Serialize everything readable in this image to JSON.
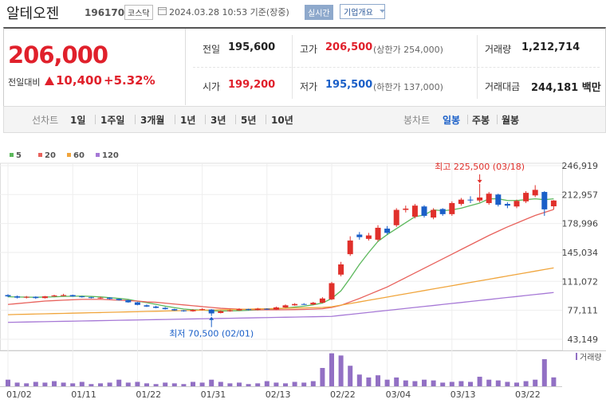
{
  "header": {
    "title": "알테오젠",
    "code": "196170",
    "market": "코스닥",
    "timestamp": "2024.03.28 10:53 기준(장중)",
    "badge": "실시간",
    "button": "기업개요"
  },
  "quote": {
    "price": "206,000",
    "change_label": "전일대비",
    "change": "10,400",
    "change_pct": "+5.32%",
    "rows": [
      [
        {
          "label": "전일",
          "value": "195,600"
        },
        {
          "label": "고가",
          "value": "206,500",
          "note": "(상한가 254,000)"
        },
        {
          "label": "거래량",
          "value": "1,212,714"
        }
      ],
      [
        {
          "label": "시가",
          "value": "199,200"
        },
        {
          "label": "저가",
          "value": "195,500",
          "note": "(하한가 137,000)"
        },
        {
          "label": "거래대금",
          "value": "244,181 백만"
        }
      ]
    ]
  },
  "tabs": {
    "line_label": "선차트",
    "line_items": [
      "1일",
      "1주일",
      "3개월",
      "1년",
      "3년",
      "5년",
      "10년"
    ],
    "candle_label": "봉차트",
    "candle_items": [
      "일봉",
      "주봉",
      "월봉"
    ],
    "selected_candle": 0
  },
  "chart_data": {
    "type": "candlestick",
    "categories": [
      "01/02",
      null,
      null,
      null,
      null,
      null,
      null,
      "01/11",
      null,
      null,
      null,
      null,
      null,
      null,
      "01/22",
      null,
      null,
      null,
      null,
      null,
      null,
      "01/31",
      null,
      null,
      null,
      null,
      null,
      null,
      "02/13",
      null,
      null,
      null,
      null,
      null,
      null,
      "02/22",
      null,
      null,
      null,
      null,
      null,
      "03/04",
      null,
      null,
      null,
      null,
      null,
      null,
      "03/13",
      null,
      null,
      null,
      null,
      null,
      null,
      "03/22",
      null,
      null,
      null,
      null
    ],
    "open": [
      95000,
      93500,
      92000,
      93000,
      91500,
      93500,
      94000,
      95000,
      93500,
      92500,
      91500,
      92000,
      90500,
      89000,
      86500,
      83000,
      81500,
      80000,
      78500,
      77000,
      76000,
      77500,
      78000,
      74000,
      76000,
      77000,
      78500,
      77500,
      79000,
      78000,
      80500,
      83000,
      84500,
      84000,
      86000,
      90000,
      119000,
      143000,
      166000,
      161000,
      160000,
      173000,
      177000,
      195000,
      187000,
      199000,
      186000,
      196000,
      190000,
      202000,
      207000,
      206000,
      203000,
      213000,
      202000,
      199000,
      205000,
      212000,
      216000,
      199200
    ],
    "high": [
      96000,
      94500,
      94000,
      93500,
      94000,
      95500,
      96500,
      95500,
      94000,
      93000,
      93000,
      92500,
      91000,
      89500,
      87000,
      84000,
      82500,
      81000,
      79000,
      77500,
      78500,
      79500,
      78500,
      77000,
      78000,
      79500,
      79000,
      80000,
      79500,
      81500,
      84000,
      85500,
      85500,
      87000,
      92500,
      110500,
      134000,
      164000,
      169000,
      168000,
      177000,
      176000,
      197000,
      200000,
      202000,
      200500,
      197000,
      197000,
      205000,
      209000,
      211000,
      225500,
      216000,
      214000,
      204000,
      207000,
      217000,
      224000,
      217000,
      206500
    ],
    "low": [
      92500,
      91000,
      91000,
      90500,
      91000,
      93000,
      93500,
      93000,
      92000,
      91000,
      90500,
      90000,
      88500,
      86000,
      83000,
      81000,
      79500,
      78000,
      76500,
      75500,
      75500,
      77000,
      70500,
      73500,
      75500,
      76500,
      77000,
      77000,
      77500,
      77500,
      80000,
      82500,
      83500,
      83500,
      85500,
      89000,
      117000,
      141000,
      160000,
      159000,
      158000,
      166000,
      175000,
      192000,
      185000,
      186000,
      184000,
      188000,
      188000,
      200000,
      203000,
      204000,
      201000,
      199000,
      197000,
      197000,
      203000,
      210000,
      188000,
      195500
    ],
    "close": [
      93500,
      92000,
      93000,
      91500,
      93500,
      94500,
      95000,
      93500,
      92500,
      91500,
      92000,
      90500,
      89000,
      86500,
      83500,
      81500,
      80000,
      78500,
      77000,
      76000,
      77500,
      78500,
      73500,
      76000,
      77000,
      78500,
      77500,
      79000,
      78000,
      80500,
      83000,
      84500,
      84000,
      86000,
      91000,
      109000,
      131000,
      159000,
      163000,
      165000,
      174000,
      168000,
      195000,
      196500,
      200000,
      188000,
      195000,
      190000,
      203000,
      207000,
      206500,
      209500,
      214000,
      201000,
      200000,
      205500,
      215000,
      218500,
      195600,
      206000
    ],
    "up_color": "#e0302b",
    "down_color": "#1a5fc8",
    "moving_averages": [
      {
        "name": "5",
        "color": "#5cb85c",
        "values": [
          93000,
          92800,
          92600,
          92400,
          92700,
          92900,
          93500,
          93600,
          93800,
          93400,
          92900,
          91900,
          91100,
          89900,
          87900,
          86100,
          84100,
          82000,
          80300,
          78600,
          77800,
          77500,
          76500,
          76300,
          76400,
          76700,
          77100,
          77600,
          77800,
          78700,
          79800,
          81000,
          82000,
          83600,
          85700,
          91000,
          100000,
          115000,
          131000,
          145000,
          158000,
          166000,
          173000,
          180000,
          187000,
          189000,
          195000,
          194000,
          195000,
          197000,
          200000,
          203000,
          208000,
          208000,
          206000,
          206000,
          207000,
          208000,
          207000,
          208000
        ]
      },
      {
        "name": "20",
        "color": "#e8625c",
        "values": [
          84000,
          85000,
          86000,
          87000,
          88000,
          88500,
          89000,
          89500,
          90000,
          90000,
          90000,
          89500,
          89000,
          88500,
          88000,
          87000,
          86500,
          85500,
          84500,
          83500,
          82500,
          81500,
          80500,
          79500,
          79000,
          78500,
          78000,
          77800,
          77700,
          77700,
          77800,
          78000,
          78200,
          78500,
          79000,
          80500,
          83000,
          87000,
          91000,
          95500,
          100000,
          104500,
          110000,
          115500,
          121000,
          126500,
          132000,
          137500,
          143000,
          148500,
          154000,
          159500,
          165000,
          170000,
          175000,
          179500,
          184000,
          188500,
          192000,
          195500
        ]
      },
      {
        "name": "60",
        "color": "#f0a53c",
        "values": [
          72000,
          72300,
          72500,
          72800,
          73000,
          73300,
          73500,
          73800,
          74000,
          74300,
          74500,
          74800,
          75000,
          75300,
          75500,
          75800,
          76000,
          76300,
          76500,
          76800,
          77000,
          77300,
          77500,
          77800,
          78000,
          78300,
          78500,
          78800,
          79000,
          79300,
          79500,
          79800,
          80000,
          80300,
          80500,
          81300,
          83200,
          85100,
          87000,
          88900,
          90800,
          92700,
          94600,
          96500,
          98400,
          100300,
          102200,
          104100,
          106000,
          107900,
          109800,
          111700,
          113600,
          115500,
          117400,
          119300,
          121200,
          123100,
          125000,
          126900
        ]
      },
      {
        "name": "120",
        "color": "#a678d6",
        "values": [
          63000,
          63200,
          63400,
          63600,
          63800,
          64000,
          64200,
          64400,
          64600,
          64800,
          65000,
          65200,
          65400,
          65600,
          65800,
          66000,
          66200,
          66400,
          66600,
          66800,
          67000,
          67200,
          67400,
          67600,
          67800,
          68000,
          68200,
          68400,
          68600,
          68800,
          69000,
          69200,
          69400,
          69600,
          69800,
          70000,
          71200,
          72300,
          73500,
          74700,
          75800,
          77000,
          78200,
          79300,
          80500,
          81700,
          82800,
          84000,
          85200,
          86300,
          87500,
          88700,
          89800,
          91000,
          92200,
          93300,
          94500,
          95700,
          96800,
          98000
        ]
      }
    ],
    "volume": {
      "name": "거래량",
      "color": "#9270c4",
      "ylim": [
        0,
        5000000
      ],
      "values": [
        900000,
        500000,
        400000,
        600000,
        500000,
        700000,
        500000,
        400000,
        600000,
        300000,
        400000,
        500000,
        900000,
        500000,
        600000,
        400000,
        300000,
        500000,
        400000,
        300000,
        600000,
        500000,
        900000,
        600000,
        400000,
        500000,
        300000,
        400000,
        700000,
        500000,
        400000,
        600000,
        500000,
        700000,
        2500000,
        4500000,
        4200000,
        2800000,
        1600000,
        1200000,
        1500000,
        900000,
        1200000,
        800000,
        700000,
        900000,
        800000,
        500000,
        600000,
        700000,
        600000,
        1300000,
        900000,
        800000,
        600000,
        500000,
        700000,
        900000,
        3700000,
        1212714
      ]
    },
    "ylim": [
      34700,
      249700
    ],
    "yticks": [
      {
        "value": 246919,
        "label": "246,919"
      },
      {
        "value": 212957,
        "label": "212,957"
      },
      {
        "value": 178996,
        "label": "178,996"
      },
      {
        "value": 145034,
        "label": "145,034"
      },
      {
        "value": 111072,
        "label": "111,072"
      },
      {
        "value": 77111,
        "label": "77,111"
      },
      {
        "value": 43149,
        "label": "43,149"
      }
    ],
    "grid": true,
    "annotations": [
      {
        "text": "최고 225,500 (03/18)",
        "color": "#e0302b",
        "at": "high"
      },
      {
        "text": "최저 70,500 (02/01)",
        "color": "#1a5fc8",
        "at": "low"
      }
    ]
  }
}
